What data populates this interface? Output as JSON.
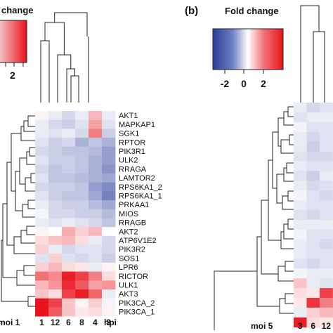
{
  "chart_data": [
    {
      "type": "heatmap",
      "panel_label": "",
      "colorbar": {
        "title": "change",
        "ticks": [
          "2"
        ],
        "range": [
          -2,
          2
        ],
        "colors": {
          "low": "#2b3d9a",
          "mid": "#ffffff",
          "high": "#e8131c"
        }
      },
      "row_label": "moi 1",
      "column_axis_label": "hpi",
      "columns": [
        "1",
        "12",
        "6",
        "8",
        "4",
        "3"
      ],
      "rows": [
        "AKT1",
        "MAPKAP1",
        "SGK1",
        "RPTOR",
        "PIK3R1",
        "ULK2",
        "RRAGA",
        "LAMTOR2",
        "RPS6KA1_2",
        "RPS6KA1_1",
        "PRKAA1",
        "MIOS",
        "RRAGB",
        "AKT2",
        "ATP6V1E2",
        "PIK3R2",
        "SOS1",
        "LPR6",
        "RICTOR",
        "ULK1",
        "AKT3",
        "PIK3CA_2",
        "PIK3CA_1"
      ],
      "values": [
        [
          0.1,
          -0.2,
          -0.4,
          -0.2,
          0.6,
          -0.2
        ],
        [
          -0.2,
          -0.4,
          -0.5,
          -0.3,
          0.8,
          -0.3
        ],
        [
          -0.2,
          -0.3,
          -0.2,
          -0.4,
          1.1,
          -0.5
        ],
        [
          -0.3,
          -0.5,
          -0.4,
          -0.8,
          -0.6,
          -0.8
        ],
        [
          -0.4,
          -0.5,
          -0.6,
          -0.6,
          -0.7,
          -1.0
        ],
        [
          -0.3,
          -0.5,
          -0.5,
          -0.6,
          -0.8,
          -1.0
        ],
        [
          -0.4,
          -0.6,
          -0.5,
          -0.6,
          -0.8,
          -1.1
        ],
        [
          -0.3,
          -0.6,
          -0.6,
          -0.7,
          -0.8,
          -0.9
        ],
        [
          -0.4,
          -0.5,
          -0.5,
          -0.6,
          -1.0,
          -1.2
        ],
        [
          -0.3,
          -0.5,
          -0.6,
          -0.6,
          -0.9,
          -1.3
        ],
        [
          -0.2,
          -0.4,
          -0.5,
          -0.5,
          -0.7,
          -0.9
        ],
        [
          -0.1,
          -0.4,
          -0.4,
          -0.5,
          -0.5,
          -0.7
        ],
        [
          -0.2,
          -0.3,
          -0.2,
          -0.3,
          -0.4,
          -0.6
        ],
        [
          0.1,
          0.0,
          0.7,
          0.4,
          0.6,
          0.0
        ],
        [
          0.3,
          0.5,
          0.6,
          0.3,
          -0.2,
          -0.4
        ],
        [
          0.4,
          -0.2,
          -0.4,
          -0.3,
          -0.3,
          -0.4
        ],
        [
          -0.3,
          0.4,
          -0.3,
          -0.4,
          -0.3,
          -0.5
        ],
        [
          0.4,
          0.6,
          0.3,
          0.2,
          -0.2,
          0.1
        ],
        [
          1.2,
          1.0,
          1.9,
          1.6,
          1.1,
          0.3
        ],
        [
          0.6,
          0.9,
          1.8,
          1.4,
          0.8,
          0.9
        ],
        [
          0.5,
          0.3,
          1.6,
          1.9,
          1.3,
          -0.2
        ],
        [
          2.0,
          1.6,
          0.5,
          0.1,
          0.4,
          -0.1
        ],
        [
          2.0,
          1.4,
          0.5,
          0.2,
          0.3,
          0.1
        ]
      ]
    },
    {
      "type": "heatmap",
      "panel_label": "(b)",
      "colorbar": {
        "title": "Fold change",
        "ticks": [
          "-2",
          "0",
          "2"
        ],
        "range": [
          -2,
          2
        ],
        "colors": {
          "low": "#2b3d9a",
          "mid": "#ffffff",
          "high": "#e8131c"
        }
      },
      "row_label": "moi 5",
      "columns": [
        "3",
        "6",
        "12"
      ],
      "values": [
        [
          -0.2,
          -0.4,
          -0.3
        ],
        [
          -0.3,
          -0.2,
          -0.2
        ],
        [
          -0.1,
          -0.3,
          -0.3
        ],
        [
          -0.2,
          -0.4,
          -0.3
        ],
        [
          -0.2,
          -0.5,
          -0.3
        ],
        [
          -0.3,
          -0.4,
          -0.4
        ],
        [
          -0.2,
          -0.3,
          -0.3
        ],
        [
          -0.3,
          -0.5,
          -0.2
        ],
        [
          -0.2,
          -0.4,
          -0.3
        ],
        [
          -0.1,
          -0.3,
          -0.4
        ],
        [
          -0.2,
          -0.3,
          -0.3
        ],
        [
          -0.3,
          -0.4,
          -0.3
        ],
        [
          -0.2,
          -0.2,
          -0.2
        ],
        [
          -0.1,
          -0.3,
          -0.3
        ],
        [
          -0.2,
          -0.3,
          -0.4
        ],
        [
          -0.2,
          -0.3,
          -0.3
        ],
        [
          -0.3,
          -0.4,
          -0.3
        ],
        [
          -0.1,
          -0.2,
          -0.2
        ],
        [
          0.5,
          -0.2,
          -0.3
        ],
        [
          0.3,
          0.2,
          1.6
        ],
        [
          0.2,
          1.7,
          1.1
        ],
        [
          -0.2,
          0.4,
          0.6
        ],
        [
          1.9,
          0.3,
          0.2
        ]
      ]
    }
  ]
}
